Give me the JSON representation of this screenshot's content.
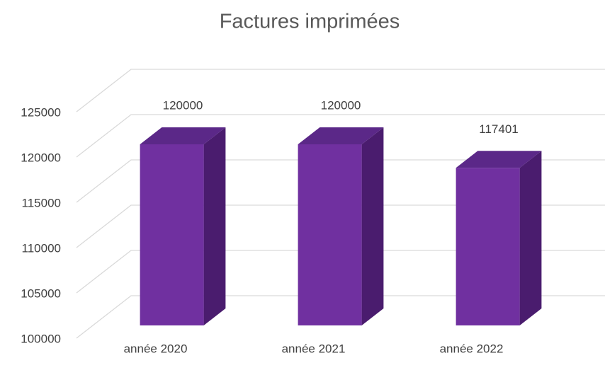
{
  "chart_data": {
    "type": "bar3d",
    "title": "Factures imprimées",
    "categories": [
      "année 2020",
      "année 2021",
      "année 2022"
    ],
    "values": [
      120000,
      120000,
      117401
    ],
    "color": "#7030a0",
    "ylim": [
      100000,
      125000
    ],
    "yticks": [
      100000,
      105000,
      110000,
      115000,
      120000,
      125000
    ],
    "grid": true
  }
}
